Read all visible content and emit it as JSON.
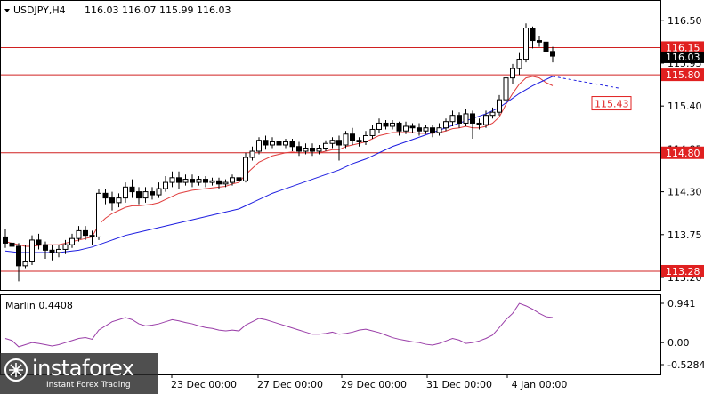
{
  "header": {
    "symbol": "USDJPY,H4",
    "ohlc": "116.03 116.07 115.99 116.03"
  },
  "indicator": {
    "name": "Marlin 0.4408",
    "ticks": [
      "0.941",
      "0.00",
      "-0.5284"
    ]
  },
  "logo": {
    "brand": "instaforex",
    "tagline": "Instant Forex Trading"
  },
  "colors": {
    "upper_ma": "#e03c3c",
    "lower_ma": "#1e1ee0",
    "oscillator": "#9a3ea8",
    "level_line": "#d02020",
    "label_bg": "#e02020"
  },
  "chart_data": {
    "type": "candlestick",
    "ylim": [
      113.2,
      116.6
    ],
    "price_ticks": [
      "116.50",
      "115.95",
      "115.40",
      "114.85",
      "114.30",
      "113.75",
      "113.20"
    ],
    "x_tick_labels": [
      "23 Dec 00:00",
      "27 Dec 00:00",
      "29 Dec 00:00",
      "31 Dec 00:00",
      "4 Jan 00:00"
    ],
    "current_price": "116.03",
    "levels": [
      {
        "label": "116.15",
        "value": 116.15
      },
      {
        "label": "115.80",
        "value": 115.8
      },
      {
        "label": "114.80",
        "value": 114.8
      },
      {
        "label": "113.28",
        "value": 113.28
      }
    ],
    "forecast_label": "115.43",
    "candles": [
      [
        113.72,
        113.64,
        113.82,
        113.58
      ],
      [
        113.64,
        113.6,
        113.7,
        113.52
      ],
      [
        113.6,
        113.35,
        113.64,
        113.15
      ],
      [
        113.35,
        113.4,
        113.62,
        113.32
      ],
      [
        113.4,
        113.68,
        113.74,
        113.36
      ],
      [
        113.68,
        113.62,
        113.76,
        113.56
      ],
      [
        113.62,
        113.55,
        113.66,
        113.44
      ],
      [
        113.55,
        113.52,
        113.62,
        113.42
      ],
      [
        113.52,
        113.56,
        113.62,
        113.46
      ],
      [
        113.56,
        113.62,
        113.68,
        113.5
      ],
      [
        113.62,
        113.7,
        113.76,
        113.58
      ],
      [
        113.7,
        113.8,
        113.86,
        113.66
      ],
      [
        113.8,
        113.74,
        113.86,
        113.68
      ],
      [
        113.74,
        113.72,
        113.8,
        113.62
      ],
      [
        113.72,
        114.28,
        114.34,
        113.68
      ],
      [
        114.28,
        114.22,
        114.34,
        114.14
      ],
      [
        114.22,
        114.16,
        114.3,
        114.06
      ],
      [
        114.16,
        114.22,
        114.28,
        114.1
      ],
      [
        114.22,
        114.36,
        114.42,
        114.16
      ],
      [
        114.36,
        114.3,
        114.46,
        114.22
      ],
      [
        114.3,
        114.22,
        114.36,
        114.14
      ],
      [
        114.22,
        114.3,
        114.36,
        114.16
      ],
      [
        114.3,
        114.26,
        114.36,
        114.2
      ],
      [
        114.26,
        114.34,
        114.42,
        114.22
      ],
      [
        114.34,
        114.42,
        114.5,
        114.3
      ],
      [
        114.42,
        114.48,
        114.56,
        114.36
      ],
      [
        114.48,
        114.42,
        114.56,
        114.34
      ],
      [
        114.42,
        114.46,
        114.52,
        114.38
      ],
      [
        114.46,
        114.42,
        114.52,
        114.36
      ],
      [
        114.42,
        114.46,
        114.5,
        114.38
      ],
      [
        114.46,
        114.42,
        114.5,
        114.36
      ],
      [
        114.42,
        114.44,
        114.48,
        114.38
      ],
      [
        114.44,
        114.4,
        114.48,
        114.34
      ],
      [
        114.4,
        114.42,
        114.46,
        114.36
      ],
      [
        114.42,
        114.48,
        114.52,
        114.38
      ],
      [
        114.48,
        114.44,
        114.54,
        114.4
      ],
      [
        114.44,
        114.74,
        114.8,
        114.42
      ],
      [
        114.74,
        114.82,
        114.88,
        114.7
      ],
      [
        114.82,
        114.96,
        115.0,
        114.78
      ],
      [
        114.96,
        114.9,
        115.02,
        114.84
      ],
      [
        114.9,
        114.94,
        115.0,
        114.86
      ],
      [
        114.94,
        114.9,
        115.0,
        114.84
      ],
      [
        114.9,
        114.94,
        114.98,
        114.86
      ],
      [
        114.94,
        114.88,
        114.98,
        114.82
      ],
      [
        114.88,
        114.82,
        114.94,
        114.76
      ],
      [
        114.82,
        114.86,
        114.92,
        114.78
      ],
      [
        114.86,
        114.82,
        114.92,
        114.76
      ],
      [
        114.82,
        114.86,
        114.9,
        114.78
      ],
      [
        114.86,
        114.92,
        114.96,
        114.82
      ],
      [
        114.92,
        114.96,
        115.0,
        114.86
      ],
      [
        114.96,
        114.9,
        115.02,
        114.7
      ],
      [
        114.9,
        115.04,
        115.08,
        114.86
      ],
      [
        115.04,
        114.96,
        115.12,
        114.9
      ],
      [
        114.96,
        114.94,
        115.0,
        114.88
      ],
      [
        114.94,
        115.02,
        115.08,
        114.9
      ],
      [
        115.02,
        115.1,
        115.16,
        114.98
      ],
      [
        115.1,
        115.18,
        115.24,
        115.06
      ],
      [
        115.18,
        115.14,
        115.22,
        115.1
      ],
      [
        115.14,
        115.18,
        115.22,
        115.1
      ],
      [
        115.18,
        115.08,
        115.2,
        115.02
      ],
      [
        115.08,
        115.14,
        115.2,
        115.04
      ],
      [
        115.14,
        115.12,
        115.18,
        115.06
      ],
      [
        115.12,
        115.08,
        115.18,
        115.02
      ],
      [
        115.08,
        115.12,
        115.16,
        115.04
      ],
      [
        115.12,
        115.06,
        115.16,
        115.0
      ],
      [
        115.06,
        115.12,
        115.18,
        115.02
      ],
      [
        115.12,
        115.2,
        115.24,
        115.08
      ],
      [
        115.2,
        115.28,
        115.34,
        115.14
      ],
      [
        115.28,
        115.18,
        115.32,
        115.12
      ],
      [
        115.18,
        115.3,
        115.36,
        115.14
      ],
      [
        115.3,
        115.18,
        115.34,
        114.98
      ],
      [
        115.18,
        115.16,
        115.24,
        115.1
      ],
      [
        115.16,
        115.28,
        115.34,
        115.12
      ],
      [
        115.28,
        115.32,
        115.38,
        115.24
      ],
      [
        115.32,
        115.48,
        115.54,
        115.28
      ],
      [
        115.48,
        115.76,
        115.84,
        115.42
      ],
      [
        115.76,
        115.88,
        115.94,
        115.68
      ],
      [
        115.88,
        116.0,
        116.08,
        115.8
      ],
      [
        116.0,
        116.4,
        116.46,
        115.96
      ],
      [
        116.4,
        116.24,
        116.42,
        116.14
      ],
      [
        116.24,
        116.22,
        116.3,
        116.16
      ],
      [
        116.22,
        116.1,
        116.3,
        116.02
      ],
      [
        116.1,
        116.04,
        116.16,
        115.96
      ]
    ],
    "series": [
      {
        "values": [
          113.66,
          113.64,
          113.62,
          113.6,
          113.6,
          113.61,
          113.62,
          113.62,
          113.62,
          113.64,
          113.66,
          113.68,
          113.7,
          113.72,
          113.88,
          113.96,
          114.02,
          114.06,
          114.1,
          114.12,
          114.12,
          114.13,
          114.14,
          114.16,
          114.2,
          114.24,
          114.28,
          114.3,
          114.32,
          114.33,
          114.34,
          114.35,
          114.36,
          114.37,
          114.4,
          114.42,
          114.52,
          114.6,
          114.68,
          114.72,
          114.76,
          114.78,
          114.8,
          114.81,
          114.8,
          114.8,
          114.8,
          114.8,
          114.82,
          114.84,
          114.84,
          114.88,
          114.9,
          114.92,
          114.94,
          114.98,
          115.02,
          115.04,
          115.06,
          115.06,
          115.06,
          115.06,
          115.05,
          115.05,
          115.05,
          115.06,
          115.08,
          115.11,
          115.12,
          115.14,
          115.12,
          115.12,
          115.14,
          115.18,
          115.26,
          115.42,
          115.56,
          115.68,
          115.76,
          115.78,
          115.76,
          115.7,
          115.66
        ]
      },
      {
        "values": [
          113.54,
          113.53,
          113.52,
          113.52,
          113.52,
          113.52,
          113.52,
          113.52,
          113.52,
          113.53,
          113.54,
          113.55,
          113.57,
          113.59,
          113.62,
          113.65,
          113.68,
          113.71,
          113.74,
          113.76,
          113.78,
          113.8,
          113.82,
          113.84,
          113.86,
          113.88,
          113.9,
          113.92,
          113.94,
          113.96,
          113.98,
          114.0,
          114.02,
          114.04,
          114.06,
          114.08,
          114.12,
          114.16,
          114.2,
          114.24,
          114.28,
          114.31,
          114.34,
          114.37,
          114.4,
          114.43,
          114.46,
          114.49,
          114.52,
          114.55,
          114.58,
          114.62,
          114.66,
          114.69,
          114.72,
          114.76,
          114.8,
          114.84,
          114.88,
          114.91,
          114.94,
          114.97,
          115.0,
          115.03,
          115.06,
          115.09,
          115.12,
          115.15,
          115.18,
          115.21,
          115.24,
          115.27,
          115.3,
          115.34,
          115.38,
          115.44,
          115.5,
          115.56,
          115.61,
          115.66,
          115.7,
          115.74,
          115.78
        ]
      }
    ],
    "oscillator": [
      0.1,
      0.05,
      -0.1,
      -0.05,
      0.0,
      -0.02,
      -0.05,
      -0.08,
      -0.05,
      0.0,
      0.05,
      0.1,
      0.12,
      0.08,
      0.3,
      0.4,
      0.5,
      0.55,
      0.6,
      0.55,
      0.45,
      0.4,
      0.42,
      0.45,
      0.5,
      0.55,
      0.52,
      0.48,
      0.45,
      0.4,
      0.36,
      0.34,
      0.3,
      0.28,
      0.3,
      0.28,
      0.42,
      0.5,
      0.58,
      0.55,
      0.5,
      0.45,
      0.4,
      0.35,
      0.3,
      0.25,
      0.2,
      0.2,
      0.22,
      0.25,
      0.2,
      0.22,
      0.25,
      0.3,
      0.32,
      0.28,
      0.24,
      0.18,
      0.12,
      0.08,
      0.05,
      0.02,
      0.0,
      -0.04,
      -0.06,
      -0.02,
      0.04,
      0.1,
      0.06,
      -0.02,
      0.0,
      0.04,
      0.1,
      0.18,
      0.36,
      0.55,
      0.7,
      0.94,
      0.88,
      0.8,
      0.7,
      0.62,
      0.6
    ]
  }
}
